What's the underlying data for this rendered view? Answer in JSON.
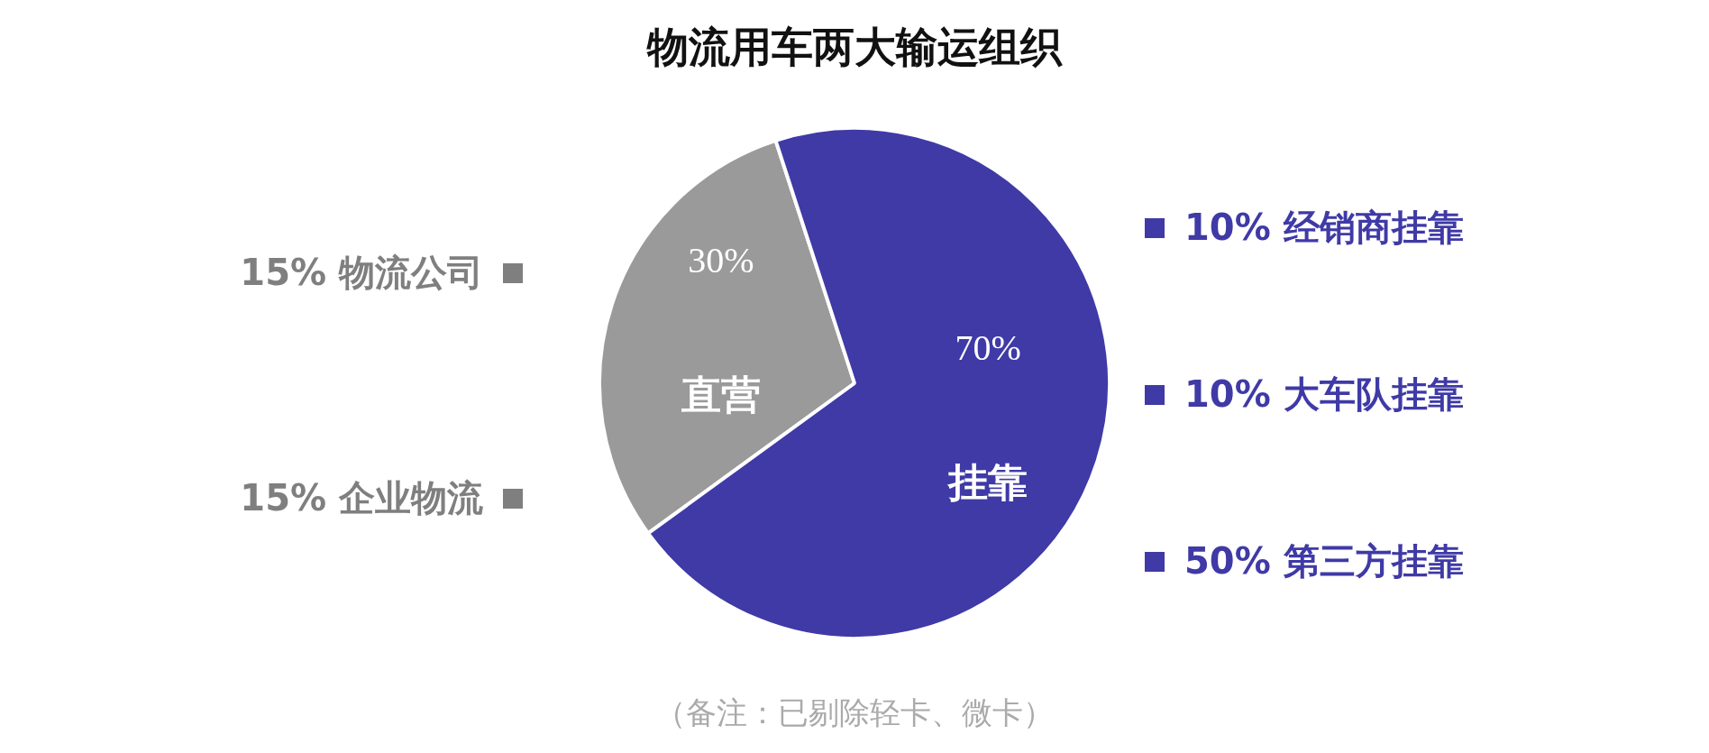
{
  "chart_data": {
    "type": "pie",
    "title": "物流用车两大输运组织",
    "categories": [
      "直营",
      "挂靠"
    ],
    "values": [
      30,
      70
    ],
    "colors": [
      "#9a9a9a",
      "#3f3aa6"
    ],
    "value_labels": [
      "30%",
      "70%"
    ],
    "annotations": [
      "15% 物流公司",
      "15% 企业物流",
      "10% 经销商挂靠",
      "10% 大车队挂靠",
      "50% 第三方挂靠",
      "（备注：已剔除轻卡、微卡）"
    ]
  }
}
